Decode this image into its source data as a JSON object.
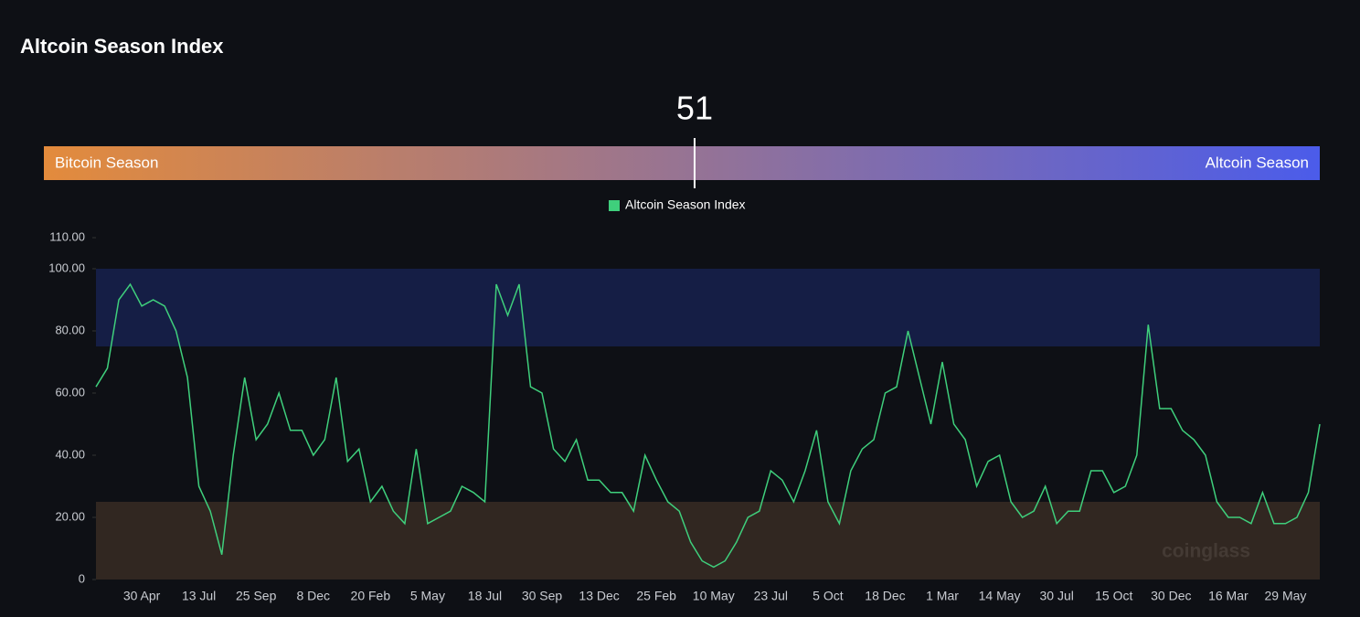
{
  "title": "Altcoin Season Index",
  "gauge": {
    "value": 51,
    "range": [
      0,
      100
    ],
    "min_label": "Bitcoin Season",
    "max_label": "Altcoin Season",
    "colors": [
      "#e38b3c",
      "#4b5cea"
    ]
  },
  "watermark": "coinglass",
  "chart_data": {
    "type": "line",
    "categories": [
      null,
      null,
      null,
      null,
      "30 Apr",
      null,
      null,
      null,
      null,
      "13 Jul",
      null,
      null,
      null,
      null,
      "25 Sep",
      null,
      null,
      null,
      null,
      "8 Dec",
      null,
      null,
      null,
      null,
      "20 Feb",
      null,
      null,
      null,
      null,
      "5 May",
      null,
      null,
      null,
      null,
      "18 Jul",
      null,
      null,
      null,
      null,
      "30 Sep",
      null,
      null,
      null,
      null,
      "13 Dec",
      null,
      null,
      null,
      null,
      "25 Feb",
      null,
      null,
      null,
      null,
      "10 May",
      null,
      null,
      null,
      null,
      "23 Jul",
      null,
      null,
      null,
      null,
      "5 Oct",
      null,
      null,
      null,
      null,
      "18 Dec",
      null,
      null,
      null,
      null,
      "1 Mar",
      null,
      null,
      null,
      null,
      "14 May",
      null,
      null,
      null,
      null,
      "30 Jul",
      null,
      null,
      null,
      null,
      "15 Oct",
      null,
      null,
      null,
      null,
      "30 Dec",
      null,
      null,
      null,
      null,
      "16 Mar",
      null,
      null,
      null,
      null,
      "29 May",
      null,
      null,
      null
    ],
    "series": [
      {
        "name": "Altcoin Season Index",
        "color": "#3fcf7c",
        "values": [
          62,
          68,
          90,
          95,
          88,
          90,
          88,
          80,
          65,
          30,
          22,
          8,
          40,
          65,
          45,
          50,
          60,
          48,
          48,
          40,
          45,
          65,
          38,
          42,
          25,
          30,
          22,
          18,
          42,
          18,
          20,
          22,
          30,
          28,
          25,
          95,
          85,
          95,
          62,
          60,
          42,
          38,
          45,
          32,
          32,
          28,
          28,
          22,
          40,
          32,
          25,
          22,
          12,
          6,
          4,
          6,
          12,
          20,
          22,
          35,
          32,
          25,
          35,
          48,
          25,
          18,
          35,
          42,
          45,
          60,
          62,
          80,
          65,
          50,
          70,
          50,
          45,
          30,
          38,
          40,
          25,
          20,
          22,
          30,
          18,
          22,
          22,
          35,
          35,
          28,
          30,
          40,
          82,
          55,
          55,
          48,
          45,
          40,
          25,
          20,
          20,
          18,
          28,
          18,
          18,
          20,
          28,
          50
        ]
      }
    ],
    "ylim": [
      0,
      110
    ],
    "yticks": [
      0,
      {
        "value": 20,
        "label": "20.00"
      },
      {
        "value": 40,
        "label": "40.00"
      },
      {
        "value": 60,
        "label": "60.00"
      },
      {
        "value": 80,
        "label": "80.00"
      },
      {
        "value": 100,
        "label": "100.00"
      },
      {
        "value": 110,
        "label": "110.00"
      }
    ],
    "bands": [
      {
        "from": 75,
        "to": 100,
        "color": "#16204a"
      },
      {
        "from": 0,
        "to": 25,
        "color": "#352a22"
      }
    ]
  }
}
